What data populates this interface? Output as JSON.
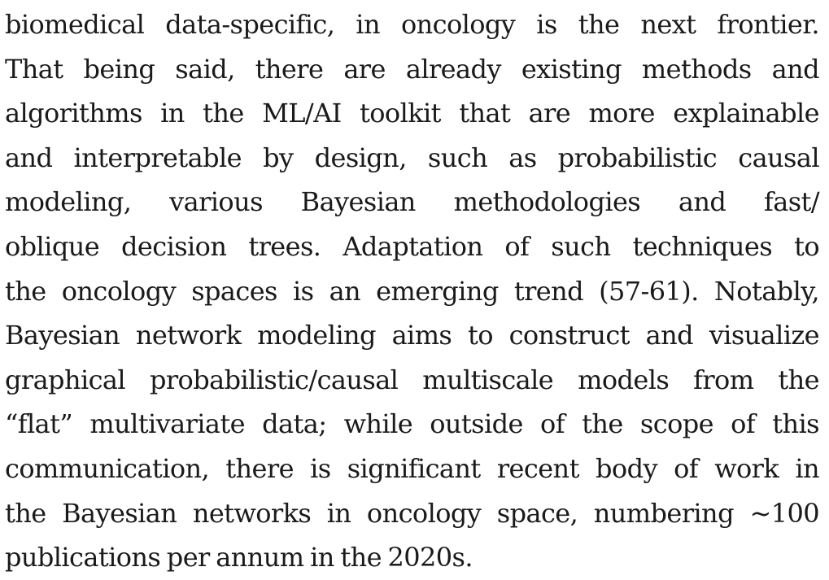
{
  "paragraph": {
    "lines": [
      "biomedical data-specific, in oncology is the next frontier.",
      "That being said, there are already existing methods and",
      "algorithms in the ML/AI toolkit that are more explainable",
      "and interpretable by design, such as probabilistic causal",
      "modeling, various Bayesian methodologies and fast/",
      "oblique decision trees. Adaptation of such techniques to",
      "the oncology spaces is an emerging trend (57-61). Notably,",
      "Bayesian network modeling aims to construct and visualize",
      "graphical probabilistic/causal multiscale models from the",
      "“flat” multivariate data; while outside of the scope of this",
      "communication, there is significant recent body of work in",
      "the Bayesian networks in oncology space, numbering ~100",
      "publications per annum in the 2020s."
    ]
  }
}
